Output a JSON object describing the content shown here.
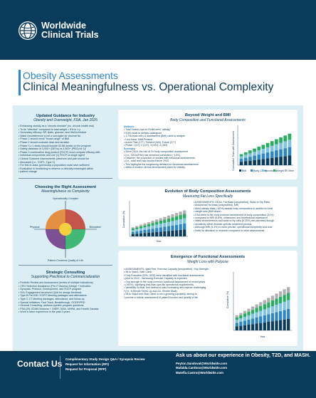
{
  "header": {
    "brand_line1": "Worldwide",
    "brand_line2": "Clinical Trials"
  },
  "title": {
    "line1": "Obesity Assessments",
    "line2": "Clinical Meaningfulness vs. Operational Complexity"
  },
  "left": {
    "sec1": {
      "title": "Updated Guidance for Industry",
      "subtitle": "Obesity and Overweight, FDA, Jan 2025",
      "items": [
        "Enhancing obesity as a \"chronic disease\" (vs. chronic health risk)",
        "To be \"effective\" compared to total weight > 5% in 1 y",
        "Secondary efficacy: BP, lipids, glucose, and HbA1c/related",
        "Waist circumference is not a surrogate for visceral fat",
        "Phase 1 should enroll \"broad range\" of BMI",
        "Phase 2 should evaluate dose and duration",
        "Phase 3 ≥ 1 study should include 52-56 weeks on the program",
        "Safety database of 3,000+ (DEVs) vs 1,500+ (PBO) for 1y",
        "Phase 3 combination drug product (FDCP) must compare efficacy with",
        "individual components and one (1) FDCP vs single agent",
        "Clinical Outcome Assessments (observer and pain should be",
        "discussed (i.e., EOP1, Type C)",
        "For first-in-class (previously a population must have sufficient",
        "Evaluation in functioning to observe a clinically meaningful within",
        "patient change"
      ]
    },
    "sec2": {
      "title": "Choosing the Right Assessment",
      "subtitle": "Meaningfulness vs Complexity",
      "axis_top": "Operationally Complex",
      "axis_bottom": "Patient-Centered Quality of Life",
      "axis_left": "Physical",
      "axis_right": "Biomarker"
    },
    "sec3": {
      "title": "Strategic Consulting",
      "subtitle": "Supporting Preclinical to Commercialization",
      "items": [
        "Portfolio Review and Assessment (review of multiple indications)",
        "CRO Selection Assistance (Pre-IT Assess) Design + Indication",
        "Synopsis, Protocol, Development, and FDCP program",
        "SOL Engagement structured Q&A for design feedback",
        "Type B Pre-IND / EOP2 Meeting packages and attendance",
        "Type C CT Meeting packages, attendance, and follow-up",
        "Special Initiatives: Fast Track, Breakthrough, OODP/PRD",
        "General Consulting: address specific program questions",
        "PSA (IR) ODAB Divisions + CBER, DMA, MHRA, and Health Canada",
        "Work in labor experience in the past 3 years"
      ]
    }
  },
  "card1": {
    "title": "Beyond Weight and BMI",
    "subtitle": "Body Composition and Functional Assessments",
    "methods_label": "Methods",
    "items": [
      "Total Search-ops for RxNB term \"obesity\"",
      "5,591 trials in obesity catalogued",
      "1,726 trials with ≥1 assessment (BMI) used to analyze",
      "Lost focus 1988-Present",
      "Active Past (177), Present (326), Future (277)",
      "Phase 1 (47), 2 (127), 3 (303), 4 (153)"
    ],
    "summary_label": "Summary",
    "summary": [
      "Since 2016, the use of Fn body composition assessment",
      "(i.e., DEXA/FMI) has remained consistent (~10%).",
      "However, the proportion of studies with functional assessments",
      "(i.e., walk test) has doubled since 2003.",
      "This highlights the burgeoning demand for functional assessments",
      "within a modern clinical development plans for obesity."
    ],
    "legend": [
      "BMI",
      "Body Comp",
      "Functional",
      "Weight",
      "Other"
    ],
    "ylabel": "Cumulative Trials with Assessment"
  },
  "card2": {
    "title": "Evolution of Body Composition Assessments",
    "subtitle": "Measuring Fat Loss Specifically",
    "ylabel": "Cumulative (%)",
    "xlabel": "Year",
    "text": [
      "ASSESSMENTS: DEXA, Fat Mass (unspecified), Waist to Hip Ratio,",
      "Abdominal Fat Mass (unspecified), MRI",
      "Most obesity trials (~60%) assess body composition in addition to total",
      "weight loss (BMI alone).",
      "DXA trend is the most common assessment of body composition (31%)",
      "compared to MRI (5.8%), ultrasound, and bioelectrical impedance.",
      "Waist circumference and waist to hip ratio (5.20%) are prevalent though",
      "sensitivity within disease-specific treatment periods.",
      "Although MRI (5.9%) is more precise, operational complexity and cost",
      "limits its utilization in research compared to other assessments."
    ]
  },
  "card3": {
    "title": "Emergence of Functional Assessments",
    "subtitle": "Weight Loss with Purpose",
    "ylabel": "Cumulative (%)",
    "xlabel": "Year",
    "text": [
      "ASSESSMENTS: Walk Test, Exercise Capacity (unspecified), Grip Strength,",
      "Sit to Stand, Stair Climb",
      "Only 5 studies (30%, 2009) were identified with functional assessments",
      "prior to 2010 - increasing Exercise Capacity is expected.",
      "Grip strength is the most common functional assessment in recent years",
      "(>50%), signifying less-than-specific operational requirements.",
      "Variability in Walk Test method is also increasing and capture challenging",
      "(i.e., 6-Minute Timed Up and Go, Shuttle Walk).",
      "Sit to Stand and Stair Climb is not a growing popularity, aiming to",
      "provide a holistic assessment of patient function and quality of life."
    ]
  },
  "footer": {
    "contact": "Contact Us",
    "links": [
      "Complimentary Study Design Q&A / Synopsis Review",
      "Request for Information (RFI)",
      "Request for Proposal (RFP)"
    ],
    "ask": "Ask us about our experience in Obesity, T2D, and MASH.",
    "emails": [
      "Peyton.Sandoval@Worldwide.com",
      "Mafalda.Cardoso@Worldwide.com",
      "Matelfa.Castro@Worldwide.com"
    ]
  },
  "colors": {
    "navy": "#0b3b5a",
    "accent": "#2f86c6",
    "panel": "#dbeef3"
  }
}
